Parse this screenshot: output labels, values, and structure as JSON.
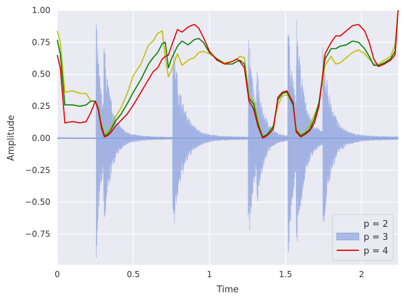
{
  "chart_data": {
    "type": "line",
    "title": "",
    "xlabel": "Time",
    "ylabel": "Amplitude",
    "xlim": [
      0,
      2.24
    ],
    "ylim": [
      -0.99,
      1.0
    ],
    "grid": true,
    "legend_position": "bottom-right",
    "background_color": "#eaeaf2",
    "xticks": [
      0,
      0.5,
      1,
      1.5,
      2
    ],
    "xtick_labels": [
      "0",
      "0.5",
      "1",
      "1.5",
      "2"
    ],
    "yticks": [
      -0.75,
      -0.5,
      -0.25,
      0.0,
      0.25,
      0.5,
      0.75,
      1.0
    ],
    "ytick_labels": [
      "−0.75",
      "−0.50",
      "−0.25",
      "0.00",
      "0.25",
      "0.50",
      "0.75",
      "1.00"
    ],
    "waveform": {
      "name": "",
      "color": "#4c72d0",
      "onsets": [
        {
          "t": 0.255,
          "amp": 0.95,
          "decay": 0.035,
          "tail": 0.2
        },
        {
          "t": 0.305,
          "amp": 0.55,
          "decay": 0.05,
          "tail": 0.22
        },
        {
          "t": 0.758,
          "amp": 0.8,
          "decay": 0.06,
          "tail": 0.32
        },
        {
          "t": 1.255,
          "amp": 0.88,
          "decay": 0.04,
          "tail": 0.2
        },
        {
          "t": 1.31,
          "amp": 0.4,
          "decay": 0.04,
          "tail": 0.15
        },
        {
          "t": 1.515,
          "amp": 0.99,
          "decay": 0.04,
          "tail": 0.25
        },
        {
          "t": 1.57,
          "amp": 0.7,
          "decay": 0.05,
          "tail": 0.22
        },
        {
          "t": 1.745,
          "amp": 0.72,
          "decay": 0.05,
          "tail": 0.3
        }
      ]
    },
    "series": [
      {
        "name": "p = 2",
        "color": "#bfbf00",
        "x": [
          0,
          0.02,
          0.05,
          0.1,
          0.15,
          0.19,
          0.22,
          0.25,
          0.27,
          0.29,
          0.31,
          0.33,
          0.35,
          0.38,
          0.42,
          0.46,
          0.5,
          0.55,
          0.6,
          0.63,
          0.66,
          0.69,
          0.71,
          0.73,
          0.75,
          0.79,
          0.82,
          0.86,
          0.9,
          0.93,
          0.96,
          1.0,
          1.05,
          1.1,
          1.15,
          1.18,
          1.2,
          1.23,
          1.26,
          1.29,
          1.32,
          1.35,
          1.38,
          1.42,
          1.45,
          1.48,
          1.51,
          1.55,
          1.57,
          1.6,
          1.63,
          1.66,
          1.69,
          1.72,
          1.76,
          1.8,
          1.83,
          1.86,
          1.9,
          1.94,
          1.98,
          2.02,
          2.05,
          2.08,
          2.11,
          2.15,
          2.19,
          2.22,
          2.24
        ],
        "values": [
          0.84,
          0.75,
          0.36,
          0.37,
          0.35,
          0.35,
          0.29,
          0.29,
          0.24,
          0.12,
          0.03,
          0.05,
          0.08,
          0.16,
          0.24,
          0.35,
          0.49,
          0.58,
          0.73,
          0.76,
          0.82,
          0.84,
          0.63,
          0.48,
          0.53,
          0.66,
          0.57,
          0.61,
          0.63,
          0.67,
          0.68,
          0.66,
          0.62,
          0.59,
          0.6,
          0.62,
          0.64,
          0.63,
          0.32,
          0.3,
          0.13,
          0.01,
          0.03,
          0.1,
          0.26,
          0.33,
          0.34,
          0.27,
          0.08,
          0.02,
          0.05,
          0.1,
          0.18,
          0.27,
          0.57,
          0.64,
          0.58,
          0.59,
          0.63,
          0.67,
          0.69,
          0.66,
          0.62,
          0.58,
          0.58,
          0.61,
          0.64,
          0.73,
          1.0
        ]
      },
      {
        "name": "p = 3",
        "color": "#008000",
        "x": [
          0,
          0.02,
          0.05,
          0.1,
          0.15,
          0.19,
          0.22,
          0.25,
          0.27,
          0.29,
          0.31,
          0.33,
          0.35,
          0.38,
          0.42,
          0.46,
          0.5,
          0.55,
          0.6,
          0.63,
          0.66,
          0.69,
          0.71,
          0.73,
          0.75,
          0.79,
          0.82,
          0.86,
          0.9,
          0.93,
          0.96,
          1.0,
          1.05,
          1.1,
          1.15,
          1.18,
          1.2,
          1.23,
          1.26,
          1.29,
          1.32,
          1.35,
          1.38,
          1.42,
          1.45,
          1.48,
          1.51,
          1.55,
          1.57,
          1.6,
          1.63,
          1.66,
          1.69,
          1.72,
          1.76,
          1.8,
          1.83,
          1.86,
          1.9,
          1.94,
          1.98,
          2.02,
          2.05,
          2.08,
          2.11,
          2.15,
          2.19,
          2.22,
          2.24
        ],
        "values": [
          0.77,
          0.66,
          0.26,
          0.26,
          0.25,
          0.26,
          0.29,
          0.29,
          0.23,
          0.1,
          0.02,
          0.03,
          0.06,
          0.13,
          0.19,
          0.27,
          0.36,
          0.46,
          0.58,
          0.63,
          0.67,
          0.74,
          0.75,
          0.55,
          0.62,
          0.72,
          0.76,
          0.73,
          0.77,
          0.78,
          0.75,
          0.67,
          0.62,
          0.58,
          0.58,
          0.6,
          0.61,
          0.58,
          0.31,
          0.27,
          0.11,
          0.01,
          0.03,
          0.09,
          0.3,
          0.35,
          0.36,
          0.26,
          0.06,
          0.02,
          0.04,
          0.07,
          0.15,
          0.28,
          0.62,
          0.7,
          0.7,
          0.72,
          0.73,
          0.76,
          0.75,
          0.7,
          0.64,
          0.57,
          0.57,
          0.59,
          0.62,
          0.68,
          1.0
        ]
      },
      {
        "name": "p = 4",
        "color": "#e00000",
        "x": [
          0,
          0.02,
          0.05,
          0.1,
          0.15,
          0.19,
          0.22,
          0.25,
          0.27,
          0.29,
          0.31,
          0.33,
          0.35,
          0.38,
          0.42,
          0.46,
          0.5,
          0.55,
          0.6,
          0.63,
          0.66,
          0.69,
          0.71,
          0.73,
          0.75,
          0.79,
          0.82,
          0.86,
          0.9,
          0.93,
          0.96,
          1.0,
          1.05,
          1.1,
          1.15,
          1.18,
          1.2,
          1.23,
          1.26,
          1.29,
          1.32,
          1.35,
          1.38,
          1.42,
          1.45,
          1.48,
          1.51,
          1.55,
          1.57,
          1.6,
          1.63,
          1.66,
          1.69,
          1.72,
          1.76,
          1.8,
          1.83,
          1.86,
          1.9,
          1.94,
          1.98,
          2.02,
          2.05,
          2.08,
          2.11,
          2.15,
          2.19,
          2.22,
          2.24
        ],
        "values": [
          0.65,
          0.55,
          0.12,
          0.13,
          0.12,
          0.13,
          0.2,
          0.29,
          0.22,
          0.08,
          0.01,
          0.02,
          0.04,
          0.09,
          0.14,
          0.19,
          0.26,
          0.36,
          0.46,
          0.52,
          0.55,
          0.62,
          0.64,
          0.65,
          0.72,
          0.85,
          0.83,
          0.87,
          0.89,
          0.86,
          0.79,
          0.68,
          0.61,
          0.58,
          0.6,
          0.62,
          0.6,
          0.55,
          0.29,
          0.23,
          0.09,
          0.0,
          0.02,
          0.07,
          0.32,
          0.36,
          0.37,
          0.28,
          0.05,
          0.01,
          0.03,
          0.06,
          0.12,
          0.25,
          0.66,
          0.75,
          0.8,
          0.8,
          0.84,
          0.88,
          0.89,
          0.84,
          0.75,
          0.62,
          0.56,
          0.58,
          0.61,
          0.65,
          1.0
        ]
      }
    ],
    "legend": {
      "entries": [
        {
          "label": "p = 2",
          "style": "none"
        },
        {
          "label": "p = 3",
          "style": "patch",
          "color": "#4c72d0"
        },
        {
          "label": "p = 4",
          "style": "line",
          "color": "#e00000"
        }
      ]
    }
  }
}
